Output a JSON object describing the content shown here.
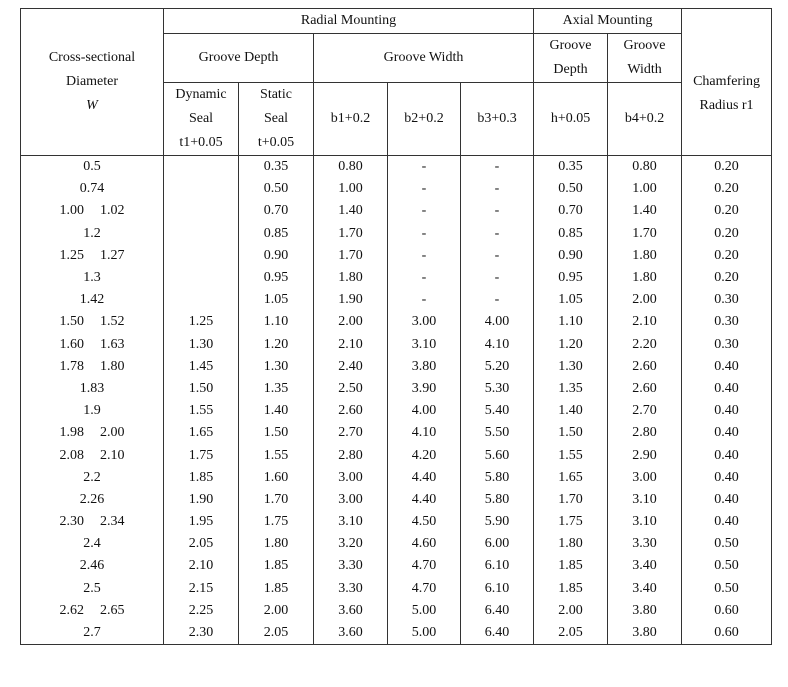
{
  "header": {
    "radial": "Radial Mounting",
    "axial": "Axial Mounting",
    "diameter": [
      "Cross-sectional",
      "Diameter",
      "W"
    ],
    "radial_depth": "Groove Depth",
    "radial_width": "Groove Width",
    "axial_depth": [
      "Groove",
      "Depth"
    ],
    "axial_width": [
      "Groove",
      "Width"
    ],
    "chamfer": [
      "Chamfering",
      "Radius r1"
    ],
    "dynamic": [
      "Dynamic",
      "Seal",
      "t1+0.05"
    ],
    "static": [
      "Static",
      "Seal",
      "t+0.05"
    ],
    "b1": "b1+0.2",
    "b2": "b2+0.2",
    "b3": "b3+0.3",
    "h": "h+0.05",
    "b4": "b4+0.2"
  },
  "table": {
    "rows": [
      [
        [
          "0.5"
        ],
        null,
        "0.35",
        "0.80",
        "-",
        "-",
        "0.35",
        "0.80",
        "0.20"
      ],
      [
        [
          "0.74"
        ],
        null,
        "0.50",
        "1.00",
        "-",
        "-",
        "0.50",
        "1.00",
        "0.20"
      ],
      [
        [
          "1.00",
          "1.02"
        ],
        null,
        "0.70",
        "1.40",
        "-",
        "-",
        "0.70",
        "1.40",
        "0.20"
      ],
      [
        [
          "1.2"
        ],
        null,
        "0.85",
        "1.70",
        "-",
        "-",
        "0.85",
        "1.70",
        "0.20"
      ],
      [
        [
          "1.25",
          "1.27"
        ],
        null,
        "0.90",
        "1.70",
        "-",
        "-",
        "0.90",
        "1.80",
        "0.20"
      ],
      [
        [
          "1.3"
        ],
        null,
        "0.95",
        "1.80",
        "-",
        "-",
        "0.95",
        "1.80",
        "0.20"
      ],
      [
        [
          "1.42"
        ],
        null,
        "1.05",
        "1.90",
        "-",
        "-",
        "1.05",
        "2.00",
        "0.30"
      ],
      [
        [
          "1.50",
          "1.52"
        ],
        "1.25",
        "1.10",
        "2.00",
        "3.00",
        "4.00",
        "1.10",
        "2.10",
        "0.30"
      ],
      [
        [
          "1.60",
          "1.63"
        ],
        "1.30",
        "1.20",
        "2.10",
        "3.10",
        "4.10",
        "1.20",
        "2.20",
        "0.30"
      ],
      [
        [
          "1.78",
          "1.80"
        ],
        "1.45",
        "1.30",
        "2.40",
        "3.80",
        "5.20",
        "1.30",
        "2.60",
        "0.40"
      ],
      [
        [
          "1.83"
        ],
        "1.50",
        "1.35",
        "2.50",
        "3.90",
        "5.30",
        "1.35",
        "2.60",
        "0.40"
      ],
      [
        [
          "1.9"
        ],
        "1.55",
        "1.40",
        "2.60",
        "4.00",
        "5.40",
        "1.40",
        "2.70",
        "0.40"
      ],
      [
        [
          "1.98",
          "2.00"
        ],
        "1.65",
        "1.50",
        "2.70",
        "4.10",
        "5.50",
        "1.50",
        "2.80",
        "0.40"
      ],
      [
        [
          "2.08",
          "2.10"
        ],
        "1.75",
        "1.55",
        "2.80",
        "4.20",
        "5.60",
        "1.55",
        "2.90",
        "0.40"
      ],
      [
        [
          "2.2"
        ],
        "1.85",
        "1.60",
        "3.00",
        "4.40",
        "5.80",
        "1.65",
        "3.00",
        "0.40"
      ],
      [
        [
          "2.26"
        ],
        "1.90",
        "1.70",
        "3.00",
        "4.40",
        "5.80",
        "1.70",
        "3.10",
        "0.40"
      ],
      [
        [
          "2.30",
          "2.34"
        ],
        "1.95",
        "1.75",
        "3.10",
        "4.50",
        "5.90",
        "1.75",
        "3.10",
        "0.40"
      ],
      [
        [
          "2.4"
        ],
        "2.05",
        "1.80",
        "3.20",
        "4.60",
        "6.00",
        "1.80",
        "3.30",
        "0.50"
      ],
      [
        [
          "2.46"
        ],
        "2.10",
        "1.85",
        "3.30",
        "4.70",
        "6.10",
        "1.85",
        "3.40",
        "0.50"
      ],
      [
        [
          "2.5"
        ],
        "2.15",
        "1.85",
        "3.30",
        "4.70",
        "6.10",
        "1.85",
        "3.40",
        "0.50"
      ],
      [
        [
          "2.62",
          "2.65"
        ],
        "2.25",
        "2.00",
        "3.60",
        "5.00",
        "6.40",
        "2.00",
        "3.80",
        "0.60"
      ],
      [
        [
          "2.7"
        ],
        "2.30",
        "2.05",
        "3.60",
        "5.00",
        "6.40",
        "2.05",
        "3.80",
        "0.60"
      ]
    ]
  }
}
